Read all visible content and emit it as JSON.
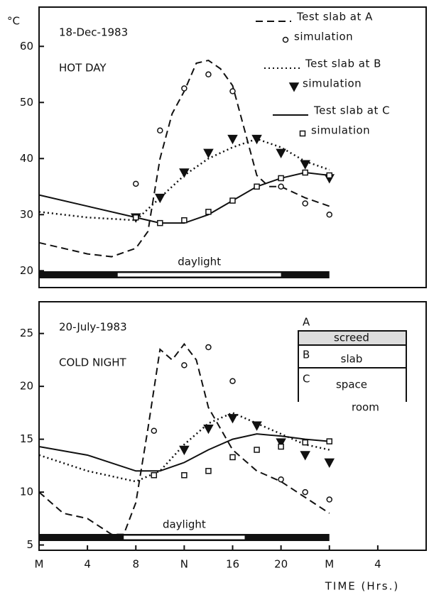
{
  "chart_data": [
    {
      "type": "line",
      "y_label": "°C",
      "annotations": [
        "18-Dec-1983",
        "HOT DAY"
      ],
      "daylight": {
        "label": "daylight",
        "range": [
          6.5,
          20
        ],
        "night": [
          0,
          24
        ]
      },
      "xlim": [
        0,
        32
      ],
      "ylim": [
        17,
        67
      ],
      "yticks": [
        20,
        30,
        40,
        50,
        60
      ],
      "legend": "upper right",
      "series": [
        {
          "name": "Test slab at A",
          "color": "#111",
          "style": "dashed",
          "x": [
            0,
            4,
            6,
            8,
            9,
            10,
            11,
            12,
            13,
            14,
            15,
            16,
            17,
            18,
            19,
            20,
            22,
            24
          ],
          "values": [
            25,
            23,
            22.5,
            24,
            27,
            40,
            48,
            52,
            57,
            57.5,
            56,
            53,
            45,
            37,
            35,
            35,
            33,
            31.5
          ]
        },
        {
          "name": "simulation",
          "color": "#111",
          "marker": "circle",
          "x": [
            8,
            10,
            12,
            14,
            16,
            20,
            22,
            24
          ],
          "values": [
            35.5,
            45,
            52.5,
            55,
            52,
            35,
            32,
            30
          ]
        },
        {
          "name": "Test slab at B",
          "color": "#111",
          "style": "dotted",
          "x": [
            0,
            4,
            8,
            10,
            12,
            14,
            16,
            18,
            20,
            22,
            24
          ],
          "values": [
            30.5,
            29.5,
            29,
            33,
            37,
            40,
            42,
            43.5,
            42,
            39.5,
            38
          ]
        },
        {
          "name": "simulation",
          "color": "#111",
          "marker": "triangle",
          "x": [
            8,
            10,
            12,
            14,
            16,
            18,
            20,
            22,
            24
          ],
          "values": [
            29.5,
            33,
            37.5,
            41,
            43.5,
            43.5,
            41,
            39,
            36.5
          ]
        },
        {
          "name": "Test slab at C",
          "color": "#111",
          "style": "solid",
          "x": [
            0,
            4,
            8,
            10,
            12,
            14,
            16,
            18,
            20,
            22,
            24
          ],
          "values": [
            33.5,
            31.5,
            29.5,
            28.5,
            28.5,
            30,
            32.5,
            35,
            36.5,
            37.5,
            37
          ]
        },
        {
          "name": "simulation",
          "color": "#111",
          "marker": "square",
          "x": [
            8,
            10,
            12,
            14,
            16,
            18,
            20,
            22,
            24
          ],
          "values": [
            29.5,
            28.5,
            29,
            30.5,
            32.5,
            35,
            36.5,
            37.5,
            37
          ]
        }
      ]
    },
    {
      "type": "line",
      "annotations": [
        "20-July-1983",
        "COLD NIGHT"
      ],
      "inset": [
        "A",
        "screed",
        "B",
        "slab",
        "C",
        "space",
        "room"
      ],
      "daylight": {
        "label": "daylight",
        "range": [
          7,
          17
        ],
        "night": [
          0,
          24
        ]
      },
      "x_label": "TIME (Hrs.)",
      "xlim": [
        0,
        32
      ],
      "ylim": [
        4.5,
        28
      ],
      "xticks": [
        {
          "value": 0,
          "label": "M"
        },
        4,
        8,
        {
          "value": 12,
          "label": "N"
        },
        16,
        20,
        {
          "value": 24,
          "label": "M"
        },
        {
          "value": 28,
          "label": "4"
        }
      ],
      "yticks": [
        5,
        10,
        15,
        20,
        25
      ],
      "series": [
        {
          "name": "Test slab at A",
          "color": "#111",
          "style": "dashed",
          "x": [
            0,
            2,
            4,
            6,
            7,
            8,
            9,
            10,
            11,
            12,
            13,
            14,
            16,
            18,
            20,
            22,
            24
          ],
          "values": [
            10,
            8,
            7.5,
            6,
            6,
            9,
            16,
            23.5,
            22.5,
            24,
            22.5,
            18,
            14,
            12,
            11,
            9.5,
            8
          ]
        },
        {
          "name": "simulation",
          "color": "#111",
          "marker": "circle",
          "x": [
            9.5,
            12,
            14,
            16,
            20,
            22,
            24
          ],
          "values": [
            15.8,
            22,
            23.7,
            20.5,
            11.2,
            10,
            9.3
          ]
        },
        {
          "name": "Test slab at B",
          "color": "#111",
          "style": "dotted",
          "x": [
            0,
            4,
            8,
            10,
            12,
            14,
            16,
            18,
            20,
            22,
            24
          ],
          "values": [
            13.5,
            12,
            11,
            12,
            14.5,
            16.5,
            17.5,
            16.5,
            15.5,
            14.5,
            14
          ]
        },
        {
          "name": "simulation",
          "color": "#111",
          "marker": "triangle",
          "x": [
            12,
            14,
            16,
            18,
            20,
            22,
            24
          ],
          "values": [
            14,
            16,
            17,
            16.3,
            14.7,
            13.5,
            12.8
          ]
        },
        {
          "name": "Test slab at C",
          "color": "#111",
          "style": "solid",
          "x": [
            0,
            4,
            8,
            10,
            12,
            14,
            16,
            18,
            20,
            22,
            24
          ],
          "values": [
            14.3,
            13.5,
            12,
            12,
            12.8,
            14,
            15,
            15.5,
            15.3,
            15,
            14.8
          ]
        },
        {
          "name": "simulation",
          "color": "#111",
          "marker": "square",
          "x": [
            9.5,
            12,
            14,
            16,
            18,
            20,
            22,
            24
          ],
          "values": [
            11.6,
            11.6,
            12,
            13.3,
            14,
            14.3,
            14.7,
            14.8
          ]
        }
      ]
    }
  ]
}
